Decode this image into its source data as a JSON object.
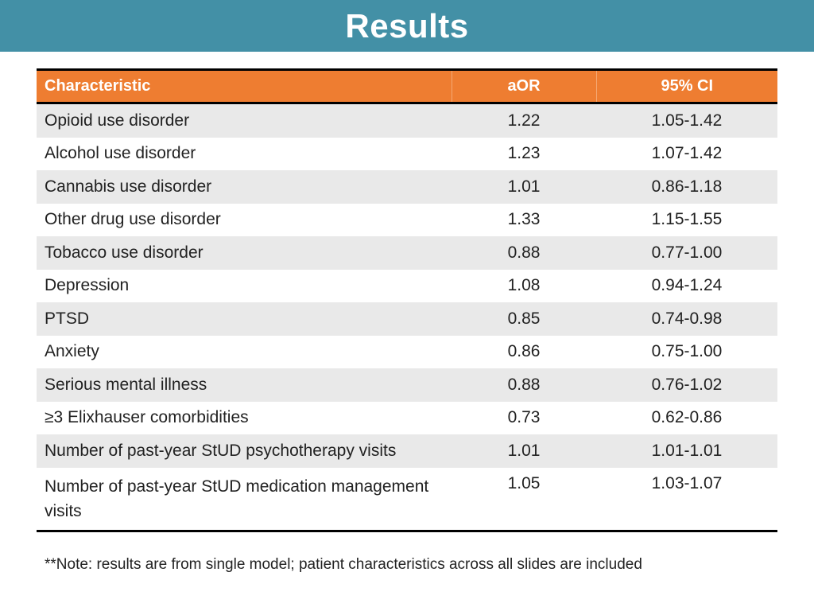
{
  "slide": {
    "title": "Results",
    "note": "**Note: results are from single model; patient characteristics across all slides are included"
  },
  "table": {
    "headers": [
      "Characteristic",
      "aOR",
      "95% CI"
    ],
    "rows": [
      [
        "Opioid use disorder",
        "1.22",
        "1.05-1.42"
      ],
      [
        "Alcohol use disorder",
        "1.23",
        "1.07-1.42"
      ],
      [
        "Cannabis use disorder",
        "1.01",
        "0.86-1.18"
      ],
      [
        "Other drug use disorder",
        "1.33",
        "1.15-1.55"
      ],
      [
        "Tobacco use disorder",
        "0.88",
        "0.77-1.00"
      ],
      [
        "Depression",
        "1.08",
        "0.94-1.24"
      ],
      [
        "PTSD",
        "0.85",
        "0.74-0.98"
      ],
      [
        "Anxiety",
        "0.86",
        "0.75-1.00"
      ],
      [
        "Serious mental illness",
        "0.88",
        "0.76-1.02"
      ],
      [
        "≥3 Elixhauser comorbidities",
        "0.73",
        "0.62-0.86"
      ],
      [
        "Number of past-year StUD psychotherapy visits",
        "1.01",
        "1.01-1.01"
      ],
      [
        "Number of past-year StUD medication management visits",
        "1.05",
        "1.03-1.07"
      ]
    ]
  },
  "colors": {
    "title_bar": "#4390a6",
    "header_fill": "#ee7d31",
    "row_band": "#e9e9e9"
  }
}
